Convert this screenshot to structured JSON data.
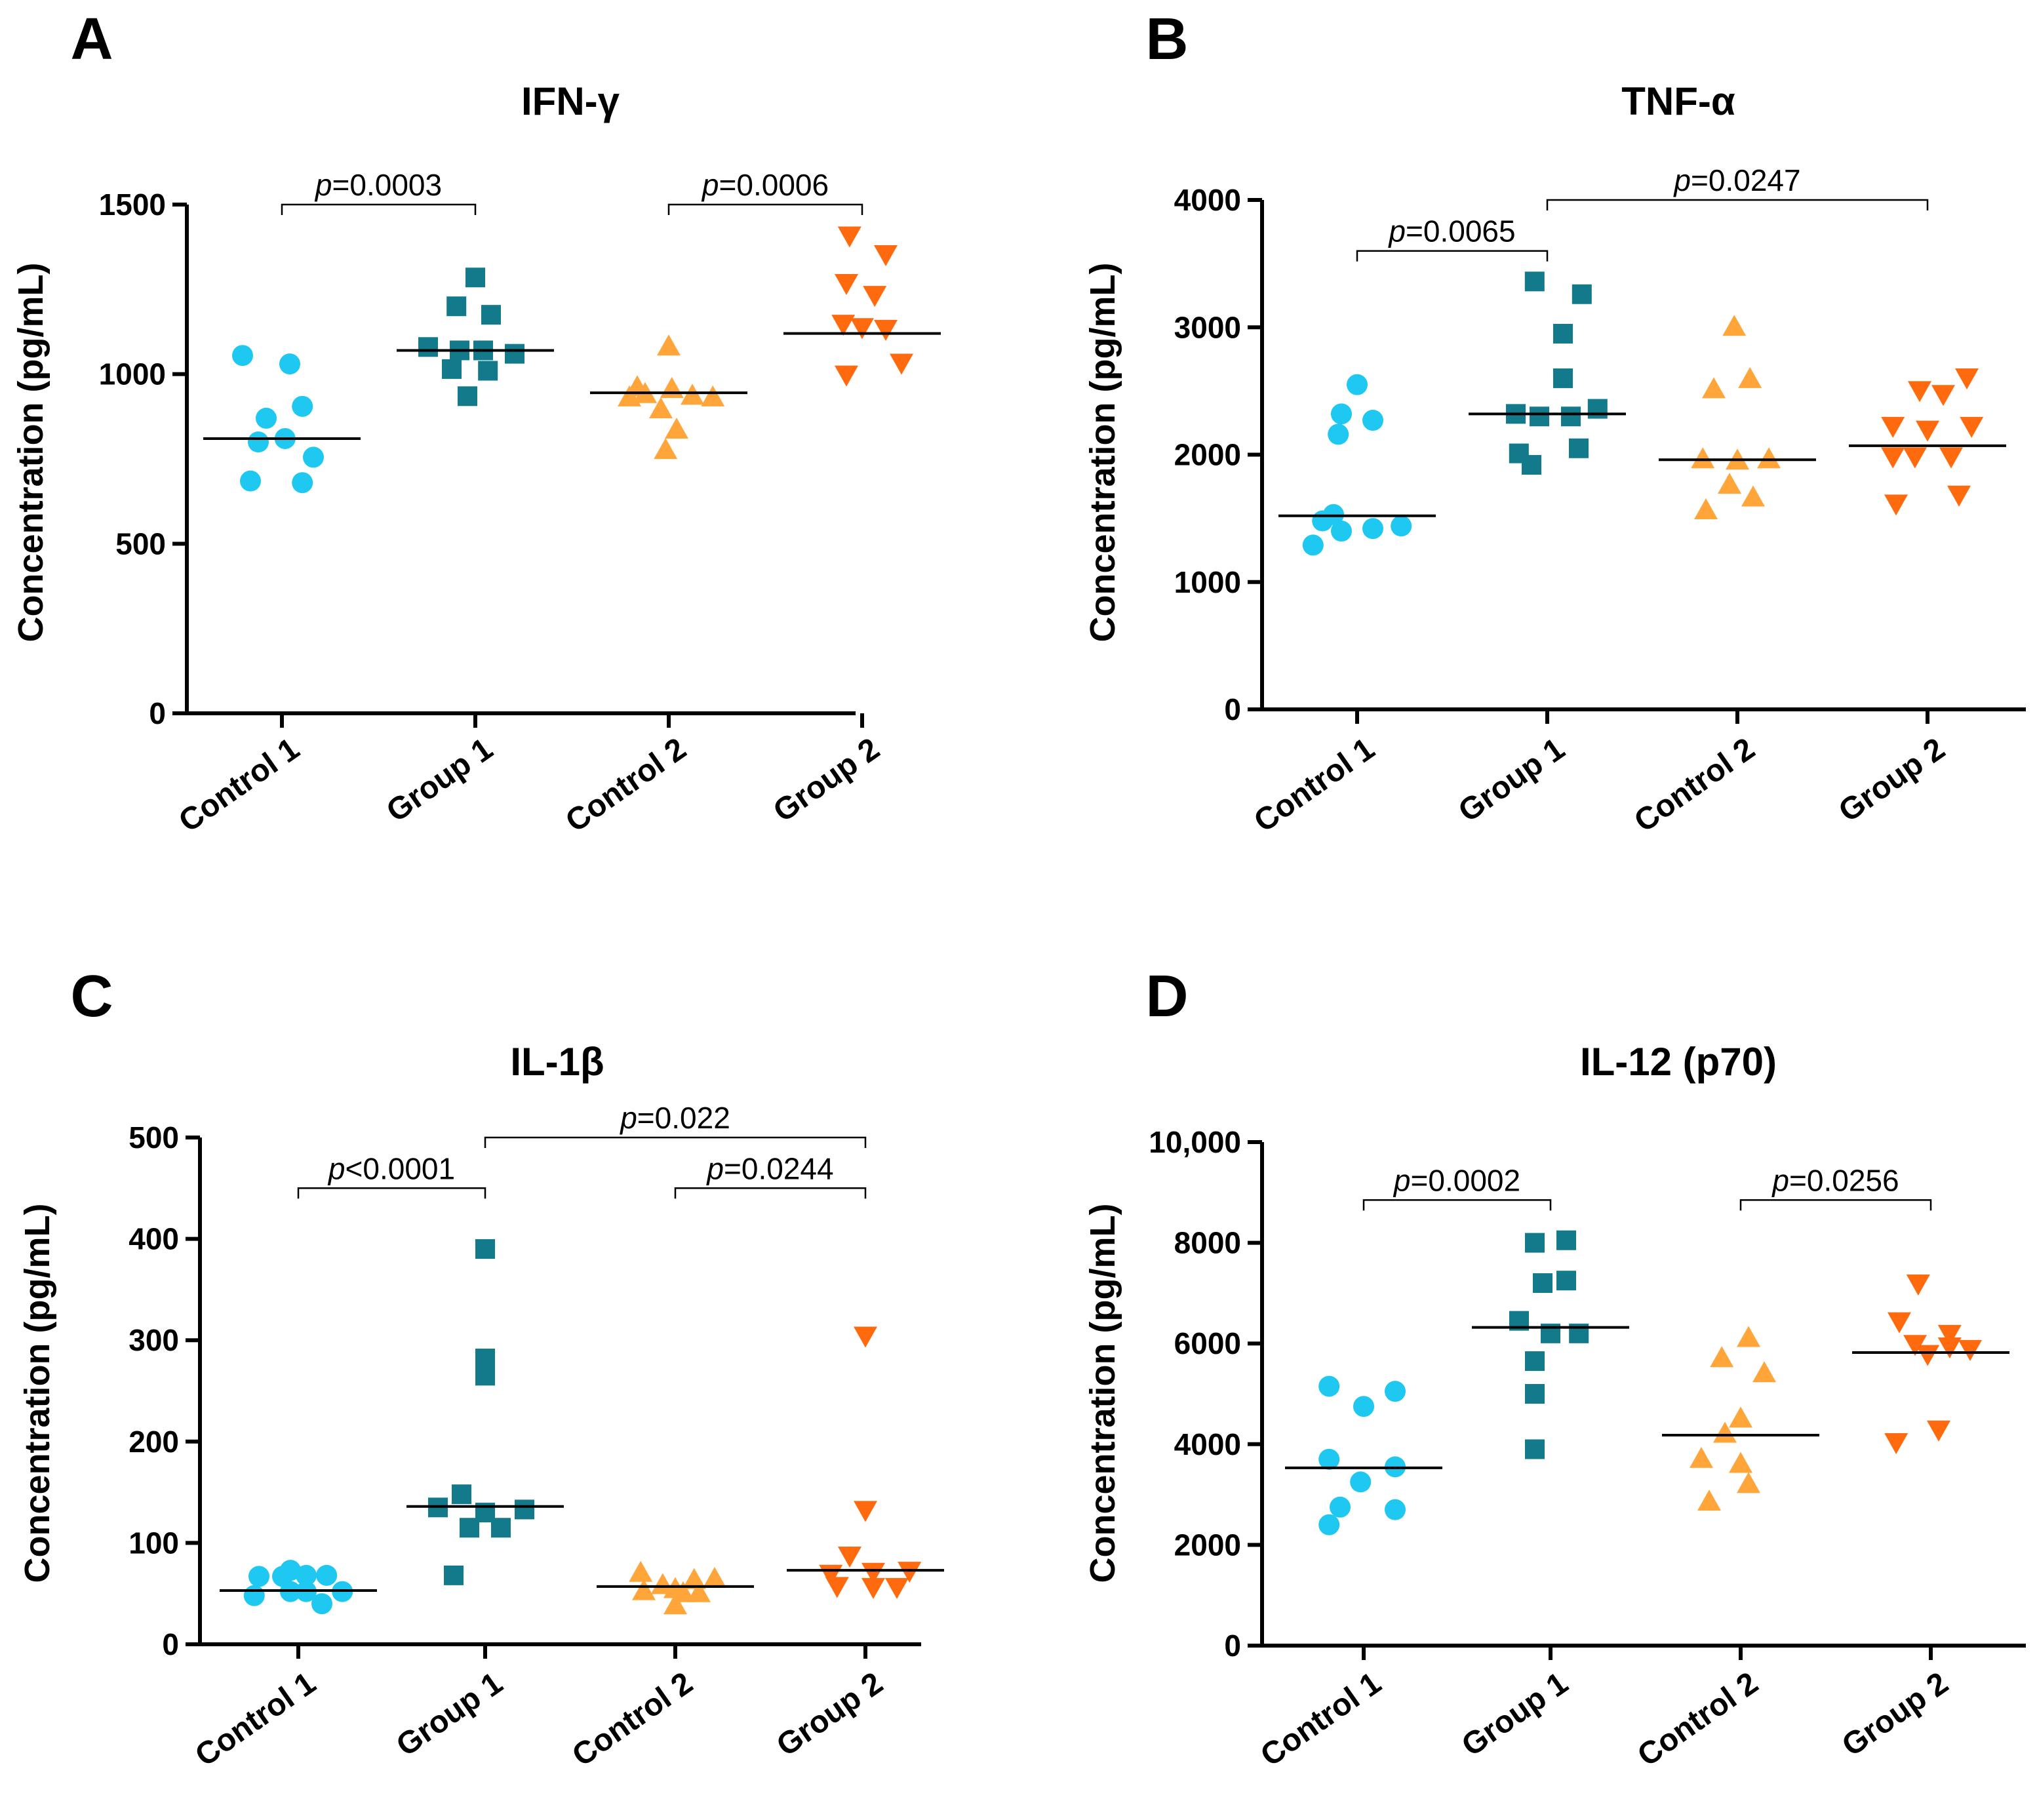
{
  "colors": {
    "control1": "#1EC8F0",
    "group1": "#137A8C",
    "control2": "#FFA53A",
    "group2": "#FF6A0E",
    "axis": "#000000",
    "median": "#000000"
  },
  "chart_data": [
    {
      "type": "scatter",
      "panel": "A",
      "title": "IFN-γ",
      "xlabel": "",
      "ylabel": "Concentration (pg/mL)",
      "ylim": [
        0,
        1500
      ],
      "yticks": [
        0,
        500,
        1000,
        1500
      ],
      "ytick_labels": [
        "0",
        "500",
        "1000",
        "1500"
      ],
      "categories": [
        "Control 1",
        "Group 1",
        "Control 2",
        "Group 2"
      ],
      "series": [
        {
          "name": "Control 1",
          "marker": "circle",
          "color": "#1EC8F0",
          "median": 810,
          "points": [
            [
              -0.25,
              1055
            ],
            [
              0.05,
              1030
            ],
            [
              0.13,
              905
            ],
            [
              -0.1,
              870
            ],
            [
              0.02,
              810
            ],
            [
              -0.15,
              800
            ],
            [
              0.2,
              755
            ],
            [
              -0.2,
              685
            ],
            [
              0.13,
              680
            ]
          ]
        },
        {
          "name": "Group 1",
          "marker": "square",
          "color": "#137A8C",
          "median": 1070,
          "points": [
            [
              0.0,
              1285
            ],
            [
              -0.12,
              1200
            ],
            [
              0.1,
              1175
            ],
            [
              -0.3,
              1080
            ],
            [
              -0.1,
              1070
            ],
            [
              0.05,
              1070
            ],
            [
              0.25,
              1060
            ],
            [
              -0.15,
              1015
            ],
            [
              0.08,
              1010
            ],
            [
              -0.05,
              935
            ]
          ]
        },
        {
          "name": "Control 2",
          "marker": "triangle-up",
          "color": "#FFA53A",
          "median": 945,
          "points": [
            [
              0.0,
              1080
            ],
            [
              -0.2,
              960
            ],
            [
              0.02,
              955
            ],
            [
              -0.15,
              940
            ],
            [
              0.15,
              935
            ],
            [
              -0.25,
              930
            ],
            [
              0.28,
              930
            ],
            [
              -0.05,
              895
            ],
            [
              0.05,
              835
            ],
            [
              -0.02,
              775
            ]
          ]
        },
        {
          "name": "Group 2",
          "marker": "triangle-down",
          "color": "#FF6A0E",
          "median": 1120,
          "points": [
            [
              -0.08,
              1410
            ],
            [
              0.15,
              1355
            ],
            [
              -0.1,
              1270
            ],
            [
              0.08,
              1235
            ],
            [
              -0.12,
              1150
            ],
            [
              0.0,
              1140
            ],
            [
              0.15,
              1135
            ],
            [
              0.25,
              1035
            ],
            [
              -0.1,
              1000
            ]
          ]
        }
      ],
      "comparisons": [
        {
          "from": 0,
          "to": 1,
          "y": 1500,
          "label": "=0.0003"
        },
        {
          "from": 2,
          "to": 3,
          "y": 1500,
          "label": "=0.0006"
        }
      ]
    },
    {
      "type": "scatter",
      "panel": "B",
      "title": "TNF-α",
      "xlabel": "",
      "ylabel": "Concentration (pg/mL)",
      "ylim": [
        0,
        4000
      ],
      "yticks": [
        0,
        1000,
        2000,
        3000,
        4000
      ],
      "ytick_labels": [
        "0",
        "1000",
        "2000",
        "3000",
        "4000"
      ],
      "categories": [
        "Control 1",
        "Group 1",
        "Control 2",
        "Group 2"
      ],
      "series": [
        {
          "name": "Control 1",
          "marker": "circle",
          "color": "#1EC8F0",
          "median": 1520,
          "points": [
            [
              0.0,
              2550
            ],
            [
              -0.1,
              2320
            ],
            [
              0.1,
              2270
            ],
            [
              -0.12,
              2160
            ],
            [
              -0.22,
              1480
            ],
            [
              -0.15,
              1530
            ],
            [
              -0.1,
              1400
            ],
            [
              0.1,
              1420
            ],
            [
              0.28,
              1440
            ],
            [
              -0.28,
              1290
            ]
          ]
        },
        {
          "name": "Group 1",
          "marker": "square",
          "color": "#137A8C",
          "median": 2320,
          "points": [
            [
              -0.08,
              3360
            ],
            [
              0.22,
              3260
            ],
            [
              0.1,
              2950
            ],
            [
              0.1,
              2600
            ],
            [
              -0.2,
              2320
            ],
            [
              -0.05,
              2300
            ],
            [
              0.15,
              2300
            ],
            [
              0.32,
              2360
            ],
            [
              -0.18,
              2010
            ],
            [
              0.2,
              2050
            ],
            [
              -0.1,
              1920
            ]
          ]
        },
        {
          "name": "Control 2",
          "marker": "triangle-up",
          "color": "#FFA53A",
          "median": 1960,
          "points": [
            [
              -0.02,
              3000
            ],
            [
              -0.15,
              2510
            ],
            [
              0.08,
              2590
            ],
            [
              -0.22,
              1960
            ],
            [
              0.0,
              1950
            ],
            [
              0.2,
              1960
            ],
            [
              -0.05,
              1760
            ],
            [
              -0.2,
              1560
            ],
            [
              0.1,
              1660
            ]
          ]
        },
        {
          "name": "Group 2",
          "marker": "triangle-down",
          "color": "#FF6A0E",
          "median": 2070,
          "points": [
            [
              0.25,
              2610
            ],
            [
              -0.05,
              2510
            ],
            [
              0.1,
              2480
            ],
            [
              -0.22,
              2230
            ],
            [
              0.0,
              2200
            ],
            [
              0.28,
              2230
            ],
            [
              -0.22,
              1990
            ],
            [
              -0.08,
              1990
            ],
            [
              0.15,
              1990
            ],
            [
              -0.2,
              1620
            ],
            [
              0.2,
              1690
            ]
          ]
        }
      ],
      "comparisons": [
        {
          "from": 0,
          "to": 1,
          "y": 3600,
          "label": "=0.0065"
        },
        {
          "from": 1,
          "to": 3,
          "y": 4000,
          "label": "=0.0247"
        }
      ]
    },
    {
      "type": "scatter",
      "panel": "C",
      "title": "IL-1β",
      "xlabel": "",
      "ylabel": "Concentration (pg/mL)",
      "ylim": [
        0,
        500
      ],
      "yticks": [
        0,
        100,
        200,
        300,
        400,
        500
      ],
      "ytick_labels": [
        "0",
        "100",
        "200",
        "300",
        "400",
        "500"
      ],
      "categories": [
        "Control 1",
        "Group 1",
        "Control 2",
        "Group 2"
      ],
      "series": [
        {
          "name": "Control 1",
          "marker": "circle",
          "color": "#1EC8F0",
          "median": 53,
          "points": [
            [
              -0.25,
              67
            ],
            [
              -0.1,
              67
            ],
            [
              -0.05,
              73
            ],
            [
              0.05,
              68
            ],
            [
              0.18,
              68
            ],
            [
              -0.28,
              48
            ],
            [
              -0.05,
              52
            ],
            [
              0.28,
              52
            ],
            [
              0.15,
              40
            ],
            [
              0.05,
              52
            ]
          ]
        },
        {
          "name": "Group 1",
          "marker": "square",
          "color": "#137A8C",
          "median": 136,
          "points": [
            [
              0.0,
              390
            ],
            [
              0.0,
              282
            ],
            [
              0.0,
              265
            ],
            [
              -0.3,
              135
            ],
            [
              -0.15,
              148
            ],
            [
              0.0,
              130
            ],
            [
              0.25,
              133
            ],
            [
              -0.1,
              115
            ],
            [
              0.1,
              115
            ],
            [
              -0.2,
              68
            ]
          ]
        },
        {
          "name": "Control 2",
          "marker": "triangle-up",
          "color": "#FFA53A",
          "median": 57,
          "points": [
            [
              -0.22,
              70
            ],
            [
              -0.08,
              58
            ],
            [
              0.0,
              54
            ],
            [
              0.12,
              63
            ],
            [
              0.25,
              64
            ],
            [
              -0.2,
              52
            ],
            [
              0.05,
              50
            ],
            [
              0.15,
              50
            ],
            [
              0.0,
              38
            ]
          ]
        },
        {
          "name": "Group 2",
          "marker": "triangle-down",
          "color": "#FF6A0E",
          "median": 73,
          "points": [
            [
              0.0,
              305
            ],
            [
              0.0,
              133
            ],
            [
              -0.1,
              88
            ],
            [
              -0.22,
              70
            ],
            [
              0.05,
              72
            ],
            [
              0.28,
              73
            ],
            [
              -0.18,
              58
            ],
            [
              0.05,
              57
            ],
            [
              0.2,
              57
            ]
          ]
        }
      ],
      "comparisons": [
        {
          "from": 0,
          "to": 1,
          "y": 450,
          "label": "<0.0001"
        },
        {
          "from": 1,
          "to": 3,
          "y": 500,
          "label": "=0.022"
        },
        {
          "from": 2,
          "to": 3,
          "y": 450,
          "label": "=0.0244"
        }
      ]
    },
    {
      "type": "scatter",
      "panel": "D",
      "title": "IL-12 (p70)",
      "xlabel": "",
      "ylabel": "Concentration (pg/mL)",
      "ylim": [
        0,
        10000
      ],
      "yticks": [
        0,
        2000,
        4000,
        6000,
        8000,
        10000
      ],
      "ytick_labels": [
        "0",
        "2000",
        "4000",
        "6000",
        "8000",
        "10,000"
      ],
      "categories": [
        "Control 1",
        "Group 1",
        "Control 2",
        "Group 2"
      ],
      "series": [
        {
          "name": "Control 1",
          "marker": "circle",
          "color": "#1EC8F0",
          "median": 3530,
          "points": [
            [
              -0.22,
              5150
            ],
            [
              0.2,
              5050
            ],
            [
              0.0,
              4750
            ],
            [
              -0.22,
              3700
            ],
            [
              0.2,
              3550
            ],
            [
              -0.02,
              3250
            ],
            [
              -0.15,
              2750
            ],
            [
              0.2,
              2700
            ],
            [
              -0.22,
              2400
            ]
          ]
        },
        {
          "name": "Group 1",
          "marker": "square",
          "color": "#137A8C",
          "median": 6320,
          "points": [
            [
              -0.1,
              8000
            ],
            [
              0.1,
              8050
            ],
            [
              -0.05,
              7200
            ],
            [
              0.1,
              7250
            ],
            [
              -0.2,
              6450
            ],
            [
              0.0,
              6200
            ],
            [
              0.18,
              6200
            ],
            [
              -0.1,
              5650
            ],
            [
              -0.1,
              5000
            ],
            [
              -0.1,
              3900
            ]
          ]
        },
        {
          "name": "Control 2",
          "marker": "triangle-up",
          "color": "#FFA53A",
          "median": 4180,
          "points": [
            [
              0.05,
              6100
            ],
            [
              -0.12,
              5700
            ],
            [
              0.15,
              5400
            ],
            [
              0.0,
              4500
            ],
            [
              -0.1,
              4200
            ],
            [
              0.0,
              3600
            ],
            [
              -0.25,
              3700
            ],
            [
              0.05,
              3200
            ],
            [
              -0.2,
              2850
            ]
          ]
        },
        {
          "name": "Group 2",
          "marker": "triangle-down",
          "color": "#FF6A0E",
          "median": 5820,
          "points": [
            [
              -0.08,
              7200
            ],
            [
              -0.2,
              6450
            ],
            [
              0.12,
              6200
            ],
            [
              -0.1,
              6000
            ],
            [
              0.12,
              5950
            ],
            [
              0.25,
              5900
            ],
            [
              -0.02,
              5800
            ],
            [
              0.05,
              4300
            ],
            [
              -0.22,
              4050
            ]
          ]
        }
      ],
      "comparisons": [
        {
          "from": 0,
          "to": 1,
          "y": 8850,
          "label": "=0.0002"
        },
        {
          "from": 2,
          "to": 3,
          "y": 8850,
          "label": "=0.0256"
        }
      ]
    }
  ]
}
